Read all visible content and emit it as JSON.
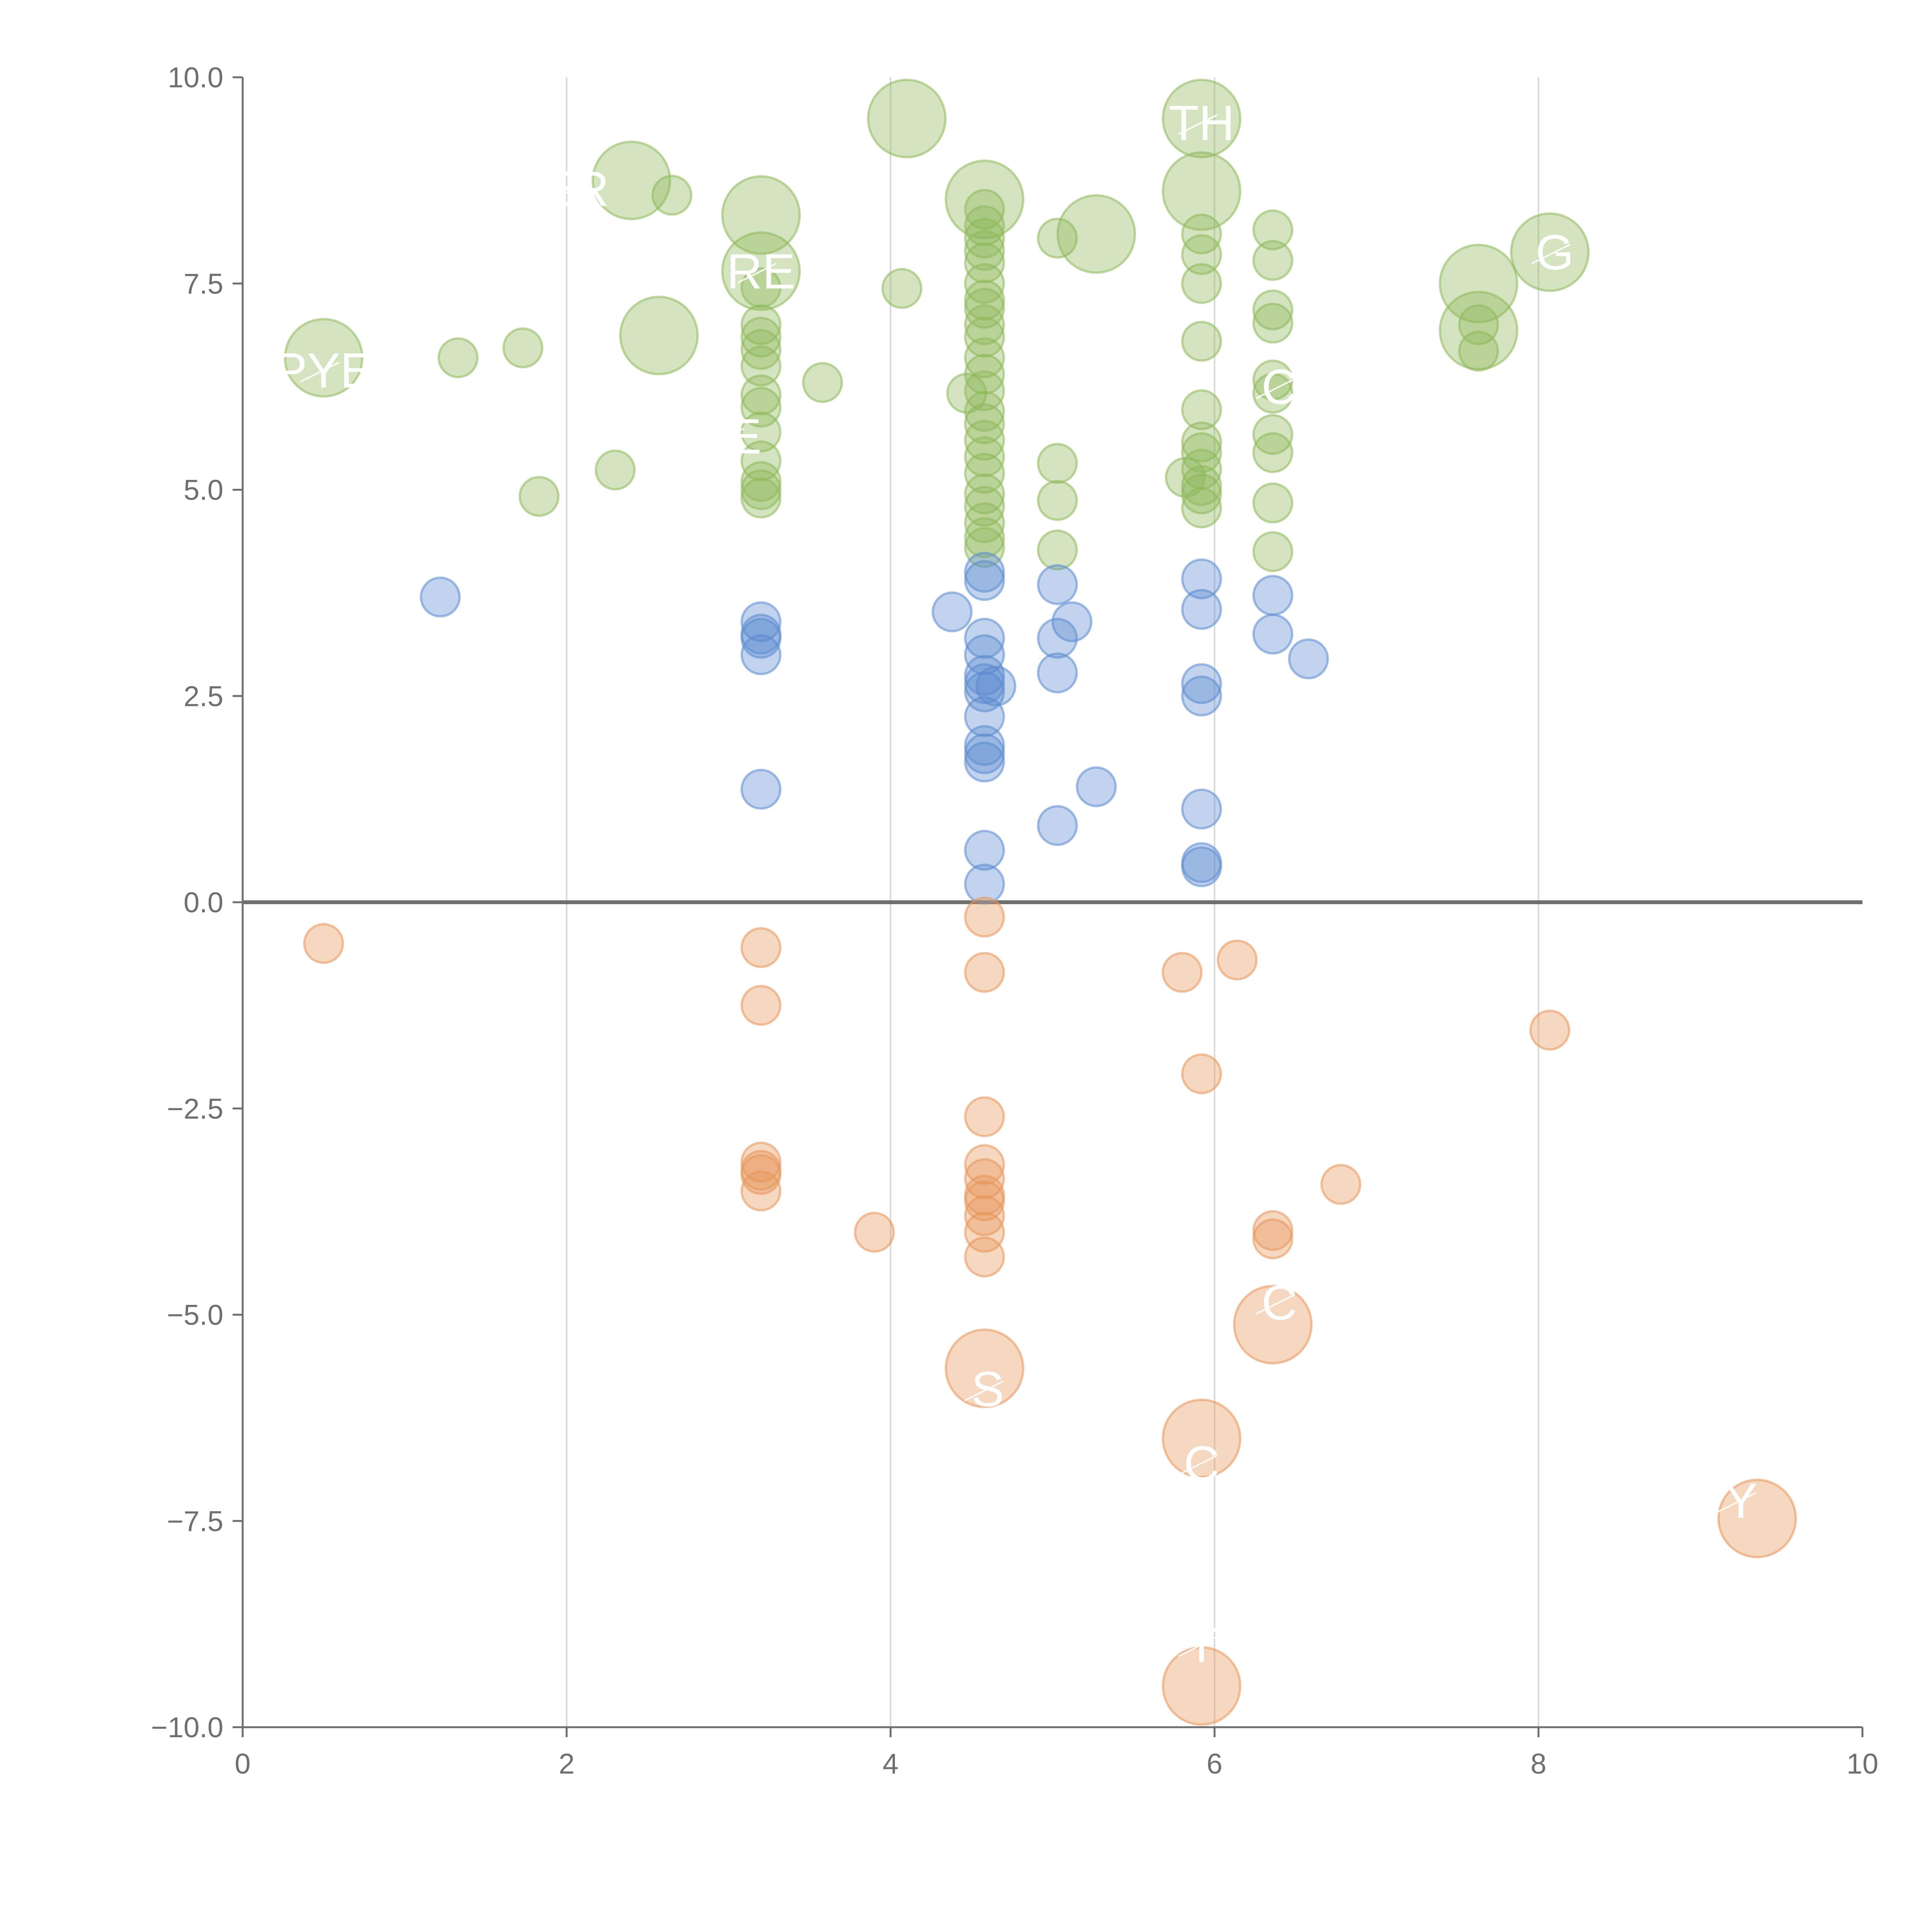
{
  "chart_data": {
    "type": "scatter",
    "title": "",
    "xlabel": "",
    "ylabel": "",
    "xlim": [
      0,
      10
    ],
    "ylim": [
      -10,
      10
    ],
    "x_ticks": [
      "0",
      "2",
      "4",
      "6",
      "8",
      "10"
    ],
    "y_ticks": [
      "10.0",
      "7.5",
      "5.0",
      "2.5",
      "0.0",
      "−2.5",
      "−5.0",
      "−7.5",
      "−10.0"
    ],
    "grid_x": [
      2,
      4,
      6,
      8
    ],
    "zero_line": 0,
    "colors": {
      "green": "#8fb85a",
      "blue": "#5b8bd0",
      "orange": "#e8965a",
      "axis": "#6f6f6f",
      "grid": "#d9d9d9"
    },
    "series": [
      {
        "name": "green",
        "color": "#8fb85a",
        "points": [
          {
            "x": 0.5,
            "y": 6.6,
            "size": "large"
          },
          {
            "x": 1.33,
            "y": 6.6
          },
          {
            "x": 1.73,
            "y": 6.72
          },
          {
            "x": 1.83,
            "y": 4.92
          },
          {
            "x": 2.3,
            "y": 5.24
          },
          {
            "x": 2.4,
            "y": 8.75,
            "size": "large"
          },
          {
            "x": 2.65,
            "y": 8.57
          },
          {
            "x": 2.57,
            "y": 6.87,
            "size": "large"
          },
          {
            "x": 3.2,
            "y": 8.33,
            "size": "large"
          },
          {
            "x": 3.2,
            "y": 7.65,
            "size": "large"
          },
          {
            "x": 3.2,
            "y": 7.45
          },
          {
            "x": 3.2,
            "y": 7.0
          },
          {
            "x": 3.2,
            "y": 6.85
          },
          {
            "x": 3.2,
            "y": 6.7
          },
          {
            "x": 3.2,
            "y": 6.5
          },
          {
            "x": 3.2,
            "y": 6.15
          },
          {
            "x": 3.2,
            "y": 6.0
          },
          {
            "x": 3.2,
            "y": 5.7
          },
          {
            "x": 3.2,
            "y": 5.35
          },
          {
            "x": 3.2,
            "y": 5.1
          },
          {
            "x": 3.2,
            "y": 5.0
          },
          {
            "x": 3.2,
            "y": 4.9
          },
          {
            "x": 3.58,
            "y": 6.3
          },
          {
            "x": 4.1,
            "y": 9.5,
            "size": "large"
          },
          {
            "x": 4.07,
            "y": 7.44
          },
          {
            "x": 4.47,
            "y": 6.17
          },
          {
            "x": 4.58,
            "y": 8.52,
            "size": "large"
          },
          {
            "x": 4.58,
            "y": 8.4
          },
          {
            "x": 4.58,
            "y": 8.2
          },
          {
            "x": 4.58,
            "y": 8.05
          },
          {
            "x": 4.58,
            "y": 7.9
          },
          {
            "x": 4.58,
            "y": 7.75
          },
          {
            "x": 4.58,
            "y": 7.5
          },
          {
            "x": 4.58,
            "y": 7.3
          },
          {
            "x": 4.58,
            "y": 7.2
          },
          {
            "x": 4.58,
            "y": 7.0
          },
          {
            "x": 4.58,
            "y": 6.85
          },
          {
            "x": 4.58,
            "y": 6.6
          },
          {
            "x": 4.58,
            "y": 6.4
          },
          {
            "x": 4.58,
            "y": 6.2
          },
          {
            "x": 4.58,
            "y": 5.95
          },
          {
            "x": 4.58,
            "y": 5.8
          },
          {
            "x": 4.58,
            "y": 5.6
          },
          {
            "x": 4.58,
            "y": 5.4
          },
          {
            "x": 4.58,
            "y": 5.2
          },
          {
            "x": 4.58,
            "y": 4.95
          },
          {
            "x": 4.58,
            "y": 4.8
          },
          {
            "x": 4.58,
            "y": 4.6
          },
          {
            "x": 4.58,
            "y": 4.42
          },
          {
            "x": 4.58,
            "y": 4.3
          },
          {
            "x": 5.03,
            "y": 8.05
          },
          {
            "x": 5.27,
            "y": 8.1,
            "size": "large"
          },
          {
            "x": 5.03,
            "y": 5.32
          },
          {
            "x": 5.03,
            "y": 4.87
          },
          {
            "x": 5.03,
            "y": 4.27
          },
          {
            "x": 5.92,
            "y": 9.5,
            "size": "large"
          },
          {
            "x": 5.92,
            "y": 8.62,
            "size": "large"
          },
          {
            "x": 5.92,
            "y": 8.1
          },
          {
            "x": 5.92,
            "y": 7.85
          },
          {
            "x": 5.92,
            "y": 7.5
          },
          {
            "x": 5.92,
            "y": 6.8
          },
          {
            "x": 5.92,
            "y": 5.97
          },
          {
            "x": 5.92,
            "y": 5.58
          },
          {
            "x": 5.92,
            "y": 5.45
          },
          {
            "x": 5.92,
            "y": 5.25
          },
          {
            "x": 5.92,
            "y": 5.05
          },
          {
            "x": 5.92,
            "y": 4.95
          },
          {
            "x": 5.92,
            "y": 4.78
          },
          {
            "x": 5.82,
            "y": 5.15
          },
          {
            "x": 6.36,
            "y": 8.15
          },
          {
            "x": 6.36,
            "y": 7.78
          },
          {
            "x": 6.36,
            "y": 7.18
          },
          {
            "x": 6.36,
            "y": 7.02
          },
          {
            "x": 6.36,
            "y": 6.33
          },
          {
            "x": 6.36,
            "y": 6.17
          },
          {
            "x": 6.36,
            "y": 5.67
          },
          {
            "x": 6.36,
            "y": 5.45
          },
          {
            "x": 6.36,
            "y": 4.84
          },
          {
            "x": 6.36,
            "y": 4.25
          },
          {
            "x": 7.63,
            "y": 7.5,
            "size": "large"
          },
          {
            "x": 7.63,
            "y": 6.93,
            "size": "large"
          },
          {
            "x": 7.63,
            "y": 7.0
          },
          {
            "x": 7.63,
            "y": 6.68
          },
          {
            "x": 8.07,
            "y": 7.88,
            "size": "large"
          }
        ]
      },
      {
        "name": "blue",
        "color": "#5b8bd0",
        "points": [
          {
            "x": 1.22,
            "y": 3.7
          },
          {
            "x": 3.2,
            "y": 3.4
          },
          {
            "x": 3.2,
            "y": 3.25
          },
          {
            "x": 3.2,
            "y": 3.2
          },
          {
            "x": 3.2,
            "y": 3.0
          },
          {
            "x": 3.2,
            "y": 1.37
          },
          {
            "x": 4.38,
            "y": 3.52
          },
          {
            "x": 4.58,
            "y": 4.0
          },
          {
            "x": 4.58,
            "y": 3.9
          },
          {
            "x": 4.58,
            "y": 3.2
          },
          {
            "x": 4.58,
            "y": 3.0
          },
          {
            "x": 4.58,
            "y": 2.75
          },
          {
            "x": 4.58,
            "y": 2.65
          },
          {
            "x": 4.58,
            "y": 2.55
          },
          {
            "x": 4.65,
            "y": 2.62
          },
          {
            "x": 4.58,
            "y": 2.25
          },
          {
            "x": 4.58,
            "y": 1.9
          },
          {
            "x": 4.58,
            "y": 1.8
          },
          {
            "x": 4.58,
            "y": 1.7
          },
          {
            "x": 4.58,
            "y": 0.63
          },
          {
            "x": 4.58,
            "y": 0.22
          },
          {
            "x": 5.03,
            "y": 3.85
          },
          {
            "x": 5.12,
            "y": 3.4
          },
          {
            "x": 5.03,
            "y": 3.2
          },
          {
            "x": 5.03,
            "y": 2.78
          },
          {
            "x": 5.27,
            "y": 1.4
          },
          {
            "x": 5.03,
            "y": 0.93
          },
          {
            "x": 5.92,
            "y": 3.92
          },
          {
            "x": 5.92,
            "y": 3.55
          },
          {
            "x": 5.92,
            "y": 2.65
          },
          {
            "x": 5.92,
            "y": 2.5
          },
          {
            "x": 5.92,
            "y": 1.13
          },
          {
            "x": 5.92,
            "y": 0.48
          },
          {
            "x": 5.92,
            "y": 0.43
          },
          {
            "x": 6.36,
            "y": 3.72
          },
          {
            "x": 6.36,
            "y": 3.25
          },
          {
            "x": 6.58,
            "y": 2.95
          }
        ]
      },
      {
        "name": "orange",
        "color": "#e8965a",
        "points": [
          {
            "x": 0.5,
            "y": -0.5
          },
          {
            "x": 3.2,
            "y": -0.55
          },
          {
            "x": 3.2,
            "y": -1.25
          },
          {
            "x": 3.2,
            "y": -3.15
          },
          {
            "x": 3.2,
            "y": -3.25
          },
          {
            "x": 3.2,
            "y": -3.3
          },
          {
            "x": 3.2,
            "y": -3.5
          },
          {
            "x": 3.9,
            "y": -4.0
          },
          {
            "x": 4.58,
            "y": -0.18
          },
          {
            "x": 4.58,
            "y": -0.85
          },
          {
            "x": 4.58,
            "y": -2.6
          },
          {
            "x": 4.58,
            "y": -3.18
          },
          {
            "x": 4.58,
            "y": -3.35
          },
          {
            "x": 4.58,
            "y": -3.55
          },
          {
            "x": 4.58,
            "y": -3.62
          },
          {
            "x": 4.58,
            "y": -3.8
          },
          {
            "x": 4.58,
            "y": -4.0
          },
          {
            "x": 4.58,
            "y": -4.3
          },
          {
            "x": 4.58,
            "y": -5.65,
            "size": "large"
          },
          {
            "x": 5.8,
            "y": -0.85
          },
          {
            "x": 6.14,
            "y": -0.7
          },
          {
            "x": 5.92,
            "y": -2.08
          },
          {
            "x": 5.92,
            "y": -6.5,
            "size": "large"
          },
          {
            "x": 5.92,
            "y": -9.5,
            "size": "large"
          },
          {
            "x": 6.36,
            "y": -3.98
          },
          {
            "x": 6.36,
            "y": -4.08
          },
          {
            "x": 6.36,
            "y": -5.12,
            "size": "large"
          },
          {
            "x": 6.78,
            "y": -3.42
          },
          {
            "x": 8.07,
            "y": -1.55
          },
          {
            "x": 9.35,
            "y": -7.47,
            "size": "large"
          }
        ]
      }
    ],
    "annotations": [
      {
        "text": "PYE",
        "x": 0.5,
        "y": 6.45
      },
      {
        "text": "ER",
        "x": 2.05,
        "y": 8.65
      },
      {
        "text": "RE",
        "x": 3.2,
        "y": 7.65
      },
      {
        "text": "SE",
        "x": 3.0,
        "y": 5.65
      },
      {
        "text": "TH",
        "x": 5.92,
        "y": 9.45
      },
      {
        "text": "G",
        "x": 8.1,
        "y": 7.88
      },
      {
        "text": "C",
        "x": 6.4,
        "y": 6.25
      },
      {
        "text": "C",
        "x": 6.4,
        "y": -4.85
      },
      {
        "text": "S",
        "x": 4.6,
        "y": -5.9
      },
      {
        "text": "C",
        "x": 5.92,
        "y": -6.8
      },
      {
        "text": "Y",
        "x": 9.25,
        "y": -7.25
      },
      {
        "text": "T",
        "x": 5.92,
        "y": -9.0
      }
    ]
  }
}
